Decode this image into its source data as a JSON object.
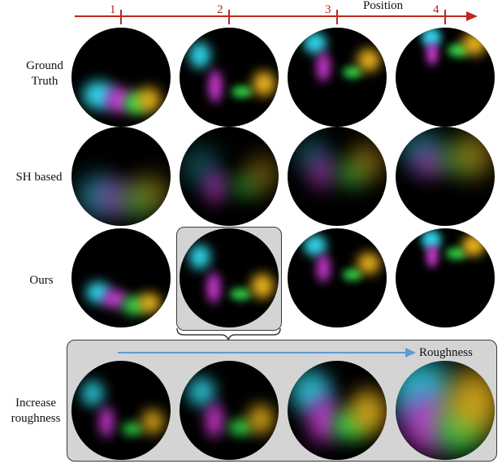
{
  "header": {
    "axis_label": "Position",
    "positions": [
      "1",
      "2",
      "3",
      "4"
    ]
  },
  "rows": [
    {
      "label_lines": [
        "Ground",
        "Truth"
      ]
    },
    {
      "label_lines": [
        "SH based"
      ]
    },
    {
      "label_lines": [
        "Ours"
      ]
    },
    {
      "label_lines": [
        "Increase",
        "roughness"
      ]
    }
  ],
  "roughness_panel": {
    "arrow_label": "Roughness"
  },
  "colors": {
    "position_axis": "#c0261e",
    "roughness_arrow": "#5b9bd5",
    "cyan": "#2fd4e6",
    "magenta": "#d23ad8",
    "green": "#2fd64a",
    "yellow": "#e8b21c",
    "panel_fill": "#d4d4d4"
  }
}
